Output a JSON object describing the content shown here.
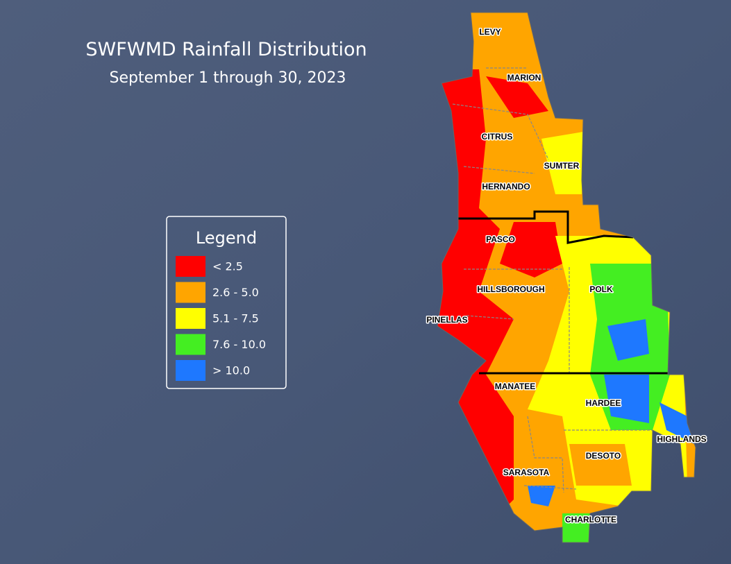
{
  "title": "SWFWMD Rainfall Distribution",
  "subtitle": "September 1 through 30, 2023",
  "legend": {
    "title": "Legend",
    "items": [
      {
        "label": "< 2.5",
        "color": "#ff0000"
      },
      {
        "label": "2.6 - 5.0",
        "color": "#ffa500"
      },
      {
        "label": "5.1 - 7.5",
        "color": "#ffff00"
      },
      {
        "label": "7.6 - 10.0",
        "color": "#44ee22"
      },
      {
        "label": "> 10.0",
        "color": "#1e78ff"
      }
    ]
  },
  "counties": [
    "LEVY",
    "MARION",
    "CITRUS",
    "SUMTER",
    "HERNANDO",
    "PASCO",
    "HILLSBOROUGH",
    "POLK",
    "PINELLAS",
    "MANATEE",
    "HARDEE",
    "HIGHLANDS",
    "DESOTO",
    "SARASOTA",
    "CHARLOTTE"
  ]
}
